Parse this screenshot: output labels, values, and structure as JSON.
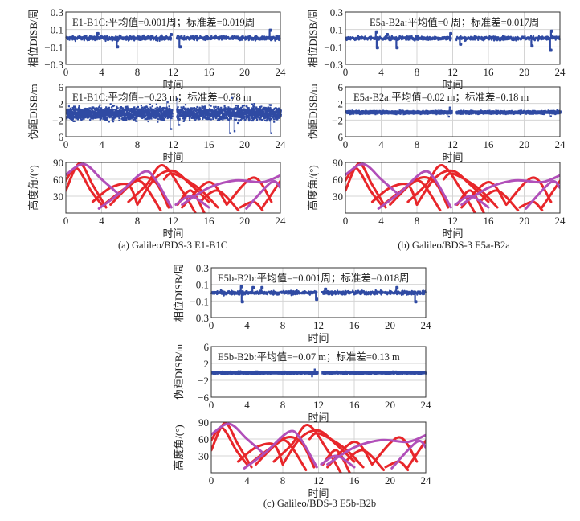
{
  "chart_data": {
    "type": "scatter",
    "x_label": "时间",
    "xlim": [
      0,
      24
    ],
    "xticks": [
      "0",
      "4",
      "8",
      "12",
      "16",
      "20",
      "24"
    ],
    "colors": {
      "disb": "#2f4aa3",
      "galileo_elev": "#e8262a",
      "bds_elev": "#b14fb9",
      "grid": "#d4d4d4"
    },
    "figures": [
      {
        "caption": "(a) Galileo/BDS-3 E1-B1C",
        "subplots": [
          {
            "kind": "phase",
            "ylabel": "相位DISB/周",
            "ylim": [
              -0.3,
              0.3
            ],
            "yticks": [
              "0.3",
              "0.1",
              "−0.1",
              "−0.3"
            ],
            "annotation": "E1-B1C:平均值=0.001周；标准差=0.019周",
            "mean": 0.001,
            "std": 0.019,
            "gap": [
              11.85,
              12.35
            ],
            "spikes": [
              [
                3.5,
                0.06
              ],
              [
                5.7,
                -0.09
              ],
              [
                11.7,
                0.05
              ],
              [
                12.7,
                -0.09
              ],
              [
                22.8,
                0.1
              ]
            ]
          },
          {
            "kind": "pseudorange",
            "ylabel": "伪距DISB/m",
            "ylim": [
              -6,
              6
            ],
            "yticks": [
              "6",
              "2",
              "−2",
              "−6"
            ],
            "annotation": "E1-B1C:平均值=−0.23 m；标准差=0.78 m",
            "mean": -0.23,
            "std": 0.78,
            "gap": [
              11.85,
              12.35
            ],
            "spikes": [
              [
                11.3,
                2.5
              ],
              [
                11.7,
                -4
              ],
              [
                12.4,
                3.3
              ],
              [
                12.6,
                -3
              ],
              [
                18.3,
                -5
              ],
              [
                18.5,
                3.5
              ],
              [
                18.8,
                -4.5
              ],
              [
                22.9,
                -5
              ]
            ]
          },
          {
            "kind": "elevation",
            "ylabel": "高度角/(°)",
            "ylim": [
              0,
              90
            ],
            "yticks": [
              "90",
              "60",
              "30"
            ]
          }
        ]
      },
      {
        "caption": "(b) Galileo/BDS-3 E5a-B2a",
        "subplots": [
          {
            "kind": "phase",
            "ylabel": "相位DISB/周",
            "ylim": [
              -0.3,
              0.3
            ],
            "yticks": [
              "0.3",
              "0.1",
              "−0.1",
              "−0.3"
            ],
            "annotation": "E5a-B2a:平均值=0 周；标准差=0.017周",
            "mean": 0,
            "std": 0.017,
            "gap": [
              11.85,
              12.35
            ],
            "spikes": [
              [
                3.4,
                0.08
              ],
              [
                3.5,
                -0.1
              ],
              [
                4.6,
                0.05
              ],
              [
                5.7,
                -0.1
              ],
              [
                11.7,
                0.06
              ],
              [
                12.8,
                -0.06
              ],
              [
                20.8,
                -0.08
              ],
              [
                22.9,
                -0.13
              ],
              [
                23.0,
                0.09
              ]
            ]
          },
          {
            "kind": "pseudorange",
            "ylabel": "伪距DISB/m",
            "ylim": [
              -6,
              6
            ],
            "yticks": [
              "6",
              "2",
              "−2",
              "−6"
            ],
            "annotation": "E5a-B2a:平均值=0.02 m；标准差=0.18 m",
            "mean": 0.02,
            "std": 0.18,
            "gap": [
              11.85,
              12.35
            ],
            "spikes": [
              [
                11.6,
                1.2
              ],
              [
                11.5,
                -1.0
              ],
              [
                22.9,
                -0.9
              ]
            ]
          },
          {
            "kind": "elevation",
            "ylabel": "高度角/(°)",
            "ylim": [
              0,
              90
            ],
            "yticks": [
              "90",
              "60",
              "30"
            ]
          }
        ]
      },
      {
        "caption": "(c) Galileo/BDS-3 E5b-B2b",
        "subplots": [
          {
            "kind": "phase",
            "ylabel": "相位DISB/周",
            "ylim": [
              -0.3,
              0.3
            ],
            "yticks": [
              "0.3",
              "0.1",
              "−0.1",
              "−0.3"
            ],
            "annotation": "E5b-B2b:平均值=−0.001周；标准差=0.018周",
            "mean": -0.001,
            "std": 0.018,
            "gap": [
              11.85,
              12.35
            ],
            "spikes": [
              [
                3.3,
                0.08
              ],
              [
                3.4,
                -0.1
              ],
              [
                4.6,
                0.07
              ],
              [
                5.6,
                0.07
              ],
              [
                11.7,
                -0.07
              ],
              [
                12.7,
                0.05
              ],
              [
                20.7,
                0.07
              ],
              [
                22.8,
                -0.1
              ]
            ]
          },
          {
            "kind": "pseudorange",
            "ylabel": "伪距DISB/m",
            "ylim": [
              -6,
              6
            ],
            "yticks": [
              "6",
              "2",
              "−2",
              "−6"
            ],
            "annotation": "E5b-B2b:平均值=−0.07 m；标准差=0.13 m",
            "mean": -0.07,
            "std": 0.13,
            "gap": [
              11.85,
              12.35
            ],
            "spikes": [
              [
                11.5,
                0.7
              ],
              [
                11.2,
                -0.9
              ]
            ]
          },
          {
            "kind": "elevation",
            "ylabel": "高度角/(°)",
            "ylim": [
              0,
              90
            ],
            "yticks": [
              "90",
              "60",
              "30"
            ]
          }
        ]
      }
    ],
    "elevation_tracks": {
      "galileo": [
        [
          [
            0,
            40
          ],
          [
            1.5,
            88
          ],
          [
            3,
            50
          ],
          [
            4.5,
            10
          ]
        ],
        [
          [
            0,
            58
          ],
          [
            1.2,
            80
          ],
          [
            2.8,
            40
          ],
          [
            4,
            15
          ]
        ],
        [
          [
            3,
            20
          ],
          [
            5,
            45
          ],
          [
            7,
            50
          ],
          [
            8,
            15
          ]
        ],
        [
          [
            4,
            12
          ],
          [
            7,
            48
          ],
          [
            8.5,
            55
          ],
          [
            10.6,
            5
          ]
        ],
        [
          [
            5,
            15
          ],
          [
            8,
            60
          ],
          [
            10,
            55
          ],
          [
            11.5,
            10
          ]
        ],
        [
          [
            7,
            20
          ],
          [
            9,
            50
          ],
          [
            10.8,
            85
          ],
          [
            13,
            40
          ],
          [
            14.5,
            0
          ]
        ],
        [
          [
            8,
            15
          ],
          [
            10,
            62
          ],
          [
            12,
            75
          ],
          [
            14,
            50
          ],
          [
            16,
            20
          ]
        ],
        [
          [
            11,
            60
          ],
          [
            12,
            70
          ],
          [
            14.8,
            45
          ],
          [
            17,
            10
          ]
        ],
        [
          [
            12.5,
            15
          ],
          [
            14,
            40
          ],
          [
            15.5,
            0
          ]
        ],
        [
          [
            13,
            10
          ],
          [
            16,
            55
          ],
          [
            18,
            15
          ]
        ],
        [
          [
            15,
            20
          ],
          [
            17,
            40
          ],
          [
            19.3,
            5
          ]
        ],
        [
          [
            18,
            15
          ],
          [
            21,
            63
          ],
          [
            23,
            20
          ]
        ],
        [
          [
            19.5,
            10
          ],
          [
            21,
            20
          ],
          [
            22,
            5
          ]
        ],
        [
          [
            22,
            10
          ],
          [
            24,
            57
          ]
        ]
      ],
      "bds": [
        [
          [
            0,
            68
          ],
          [
            2,
            87
          ],
          [
            4,
            60
          ],
          [
            5.8,
            35
          ]
        ],
        [
          [
            3.7,
            8
          ],
          [
            6,
            35
          ],
          [
            8.7,
            73
          ],
          [
            10,
            60
          ],
          [
            11.8,
            10
          ]
        ],
        [
          [
            12.3,
            15
          ],
          [
            14,
            30
          ],
          [
            16,
            10
          ]
        ],
        [
          [
            13,
            15
          ],
          [
            16,
            45
          ],
          [
            19,
            58
          ],
          [
            22,
            55
          ],
          [
            24,
            67
          ]
        ],
        [
          [
            20.2,
            8
          ],
          [
            23,
            55
          ],
          [
            24,
            45
          ]
        ]
      ]
    }
  }
}
